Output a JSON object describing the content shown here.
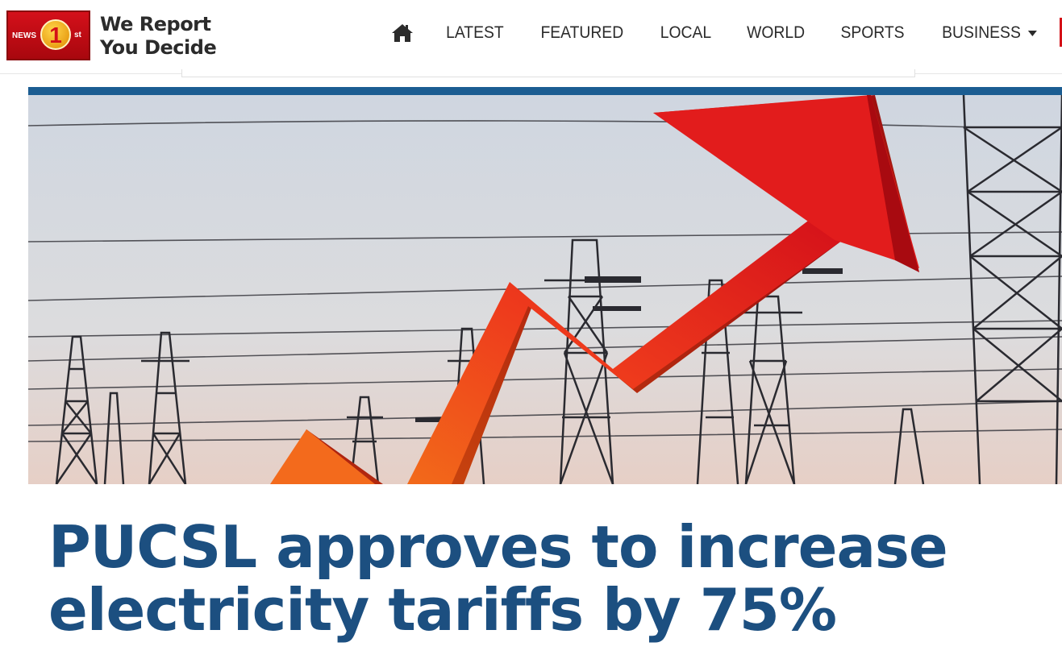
{
  "header": {
    "logo": {
      "badge_prefix": "NEWS",
      "badge_number": "1",
      "badge_suffix": "st"
    },
    "tagline_line1": "We Report",
    "tagline_line2": "You Decide"
  },
  "nav": {
    "home_icon": "home-icon",
    "items": [
      {
        "label": "LATEST"
      },
      {
        "label": "FEATURED"
      },
      {
        "label": "LOCAL"
      },
      {
        "label": "WORLD"
      },
      {
        "label": "SPORTS"
      },
      {
        "label": "BUSINESS"
      }
    ],
    "dropdown_icon": "caret-down-icon"
  },
  "hero": {
    "description_icon": "red-rising-arrow-over-power-lines",
    "accent_color": "#1b5d92"
  },
  "article": {
    "headline": "PUCSL approves to increase electricity tariffs by 75%",
    "headline_color": "#1c4f80"
  }
}
